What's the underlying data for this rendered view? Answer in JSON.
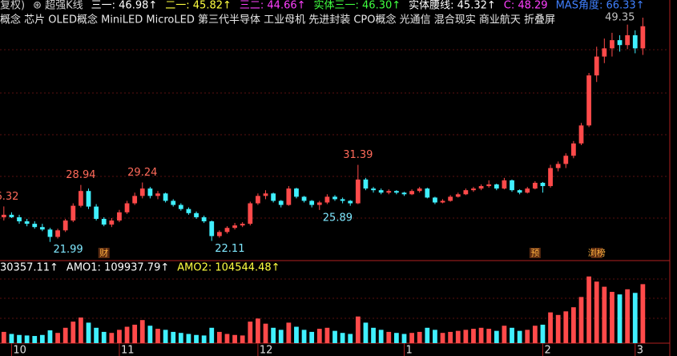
{
  "chart_data": {
    "type": "candlestick",
    "indicators": [
      {
        "label": "复权)",
        "color": "#d0d0d0"
      },
      {
        "label": "⊛ 超强K线",
        "color": "#d0d0d0"
      },
      {
        "label": "三一: 46.98↑",
        "color": "#ffffff"
      },
      {
        "label": "二一: 45.82↑",
        "color": "#ffff40"
      },
      {
        "label": "三二: 44.66↑",
        "color": "#ff40ff"
      },
      {
        "label": "实体三一: 46.30↑",
        "color": "#40ff40"
      },
      {
        "label": "实体腰线: 45.32↑",
        "color": "#ffffff"
      },
      {
        "label": "C: 48.29",
        "color": "#ff40ff"
      },
      {
        "label": "MAS角度: 66.33↑",
        "color": "#4080ff"
      }
    ],
    "concepts": "概念 芯片 OLED概念 MiniLED MicroLED 第三代半导体 工业母机 先进封装 CPO概念 光通信 混合现实 商业航天 折叠屏",
    "volume_indicators": [
      {
        "label": "30357.11↑",
        "color": "#ffffff"
      },
      {
        "label": "AMO1: 109937.79↑",
        "color": "#ffffff"
      },
      {
        "label": "AMO2: 104544.48↑",
        "color": "#ffff40"
      }
    ],
    "up_color": "#ff4a4a",
    "down_color": "#40f0ff",
    "ylim": [
      20.2,
      51.5
    ],
    "volume_ylim": [
      0,
      150000
    ],
    "xlim": [
      -0.5,
      86.5
    ],
    "xticks": [
      {
        "value": 1,
        "label": "10"
      },
      {
        "value": 15,
        "label": "11"
      },
      {
        "value": 33,
        "label": "12"
      },
      {
        "value": 52,
        "label": "1"
      },
      {
        "value": 70,
        "label": "2"
      },
      {
        "value": 82,
        "label": "3"
      }
    ],
    "peak_labels": [
      0,
      10,
      18,
      46,
      83
    ],
    "trough_labels": [
      6,
      27,
      41
    ],
    "events": [
      {
        "index": 13,
        "label": "财"
      },
      {
        "index": 69,
        "label": "预"
      },
      {
        "index": 77,
        "label": "浏榜"
      }
    ],
    "candles": [
      [
        25.0,
        26.32,
        24.6,
        25.3
      ],
      [
        25.3,
        25.6,
        24.9,
        25.0
      ],
      [
        25.0,
        25.3,
        24.2,
        24.5
      ],
      [
        24.5,
        24.8,
        23.9,
        24.2
      ],
      [
        24.2,
        24.5,
        23.6,
        23.8
      ],
      [
        23.8,
        24.2,
        23.3,
        23.5
      ],
      [
        23.5,
        23.7,
        21.99,
        22.6
      ],
      [
        22.6,
        23.6,
        22.4,
        23.4
      ],
      [
        23.4,
        24.8,
        23.2,
        24.6
      ],
      [
        24.6,
        26.7,
        24.4,
        26.4
      ],
      [
        26.4,
        28.94,
        26.2,
        28.2
      ],
      [
        28.2,
        28.5,
        26.0,
        26.3
      ],
      [
        26.3,
        26.6,
        24.6,
        24.8
      ],
      [
        24.8,
        25.0,
        23.9,
        24.1
      ],
      [
        24.1,
        24.9,
        23.8,
        24.6
      ],
      [
        24.6,
        25.9,
        24.4,
        25.6
      ],
      [
        25.6,
        27.0,
        25.4,
        26.7
      ],
      [
        26.7,
        28.0,
        26.5,
        27.6
      ],
      [
        27.6,
        29.24,
        27.3,
        28.5
      ],
      [
        28.5,
        28.7,
        27.3,
        27.6
      ],
      [
        27.6,
        28.2,
        27.2,
        27.9
      ],
      [
        27.9,
        28.0,
        26.8,
        27.0
      ],
      [
        27.0,
        27.2,
        26.3,
        26.5
      ],
      [
        26.5,
        26.7,
        25.8,
        26.0
      ],
      [
        26.0,
        26.2,
        25.3,
        25.5
      ],
      [
        25.5,
        25.7,
        24.8,
        25.0
      ],
      [
        25.0,
        25.2,
        24.3,
        24.5
      ],
      [
        24.5,
        24.6,
        22.11,
        22.7
      ],
      [
        22.7,
        23.4,
        22.5,
        23.2
      ],
      [
        23.2,
        23.9,
        23.0,
        23.7
      ],
      [
        23.7,
        24.3,
        23.5,
        24.0
      ],
      [
        24.0,
        24.4,
        23.8,
        24.2
      ],
      [
        24.2,
        26.9,
        24.0,
        26.7
      ],
      [
        26.7,
        27.9,
        26.5,
        27.6
      ],
      [
        27.6,
        28.3,
        27.2,
        27.9
      ],
      [
        27.9,
        28.0,
        26.8,
        27.0
      ],
      [
        27.0,
        27.1,
        26.2,
        26.5
      ],
      [
        26.5,
        28.8,
        26.4,
        28.5
      ],
      [
        28.5,
        28.6,
        27.3,
        27.5
      ],
      [
        27.5,
        27.6,
        26.8,
        27.0
      ],
      [
        27.0,
        27.1,
        26.2,
        26.5
      ],
      [
        26.5,
        27.0,
        25.89,
        26.8
      ],
      [
        26.8,
        27.8,
        26.6,
        27.5
      ],
      [
        27.5,
        27.7,
        27.0,
        27.2
      ],
      [
        27.2,
        27.4,
        26.7,
        27.0
      ],
      [
        27.0,
        27.1,
        26.4,
        26.7
      ],
      [
        26.7,
        31.39,
        26.6,
        29.6
      ],
      [
        29.6,
        29.8,
        28.3,
        28.5
      ],
      [
        28.5,
        28.7,
        28.0,
        28.3
      ],
      [
        28.3,
        28.5,
        27.8,
        28.0
      ],
      [
        28.0,
        28.4,
        27.8,
        28.2
      ],
      [
        28.2,
        28.3,
        27.8,
        28.0
      ],
      [
        28.0,
        28.1,
        27.6,
        27.8
      ],
      [
        27.8,
        28.4,
        27.7,
        28.2
      ],
      [
        28.2,
        28.7,
        28.0,
        28.5
      ],
      [
        28.5,
        28.6,
        27.3,
        27.4
      ],
      [
        27.4,
        27.5,
        26.6,
        26.8
      ],
      [
        26.8,
        27.2,
        26.7,
        27.0
      ],
      [
        27.0,
        27.7,
        26.9,
        27.5
      ],
      [
        27.5,
        28.0,
        27.4,
        27.8
      ],
      [
        27.8,
        28.5,
        27.7,
        28.3
      ],
      [
        28.3,
        28.7,
        28.1,
        28.5
      ],
      [
        28.5,
        29.0,
        28.3,
        28.8
      ],
      [
        28.8,
        29.5,
        28.6,
        29.0
      ],
      [
        29.0,
        29.1,
        28.3,
        28.5
      ],
      [
        28.5,
        29.8,
        28.4,
        29.5
      ],
      [
        29.5,
        29.6,
        28.1,
        28.3
      ],
      [
        28.3,
        28.4,
        27.8,
        28.0
      ],
      [
        28.0,
        28.7,
        27.9,
        28.5
      ],
      [
        28.5,
        29.4,
        28.4,
        29.2
      ],
      [
        29.2,
        29.3,
        28.0,
        28.8
      ],
      [
        28.8,
        31.4,
        28.6,
        31.0
      ],
      [
        31.0,
        31.8,
        30.6,
        31.5
      ],
      [
        31.5,
        32.8,
        31.0,
        32.5
      ],
      [
        32.5,
        34.3,
        32.2,
        34.0
      ],
      [
        34.0,
        36.5,
        33.8,
        36.2
      ],
      [
        36.2,
        42.6,
        36.0,
        42.3
      ],
      [
        42.3,
        45.8,
        41.5,
        44.6
      ],
      [
        44.6,
        46.8,
        43.8,
        45.6
      ],
      [
        45.6,
        47.5,
        44.6,
        46.6
      ],
      [
        46.6,
        47.2,
        45.2,
        46.0
      ],
      [
        46.0,
        48.5,
        45.5,
        47.2
      ],
      [
        47.2,
        47.8,
        45.0,
        45.6
      ],
      [
        45.6,
        49.35,
        44.8,
        48.3
      ]
    ],
    "volumes": [
      22000,
      18000,
      16000,
      15000,
      14000,
      16000,
      25000,
      20000,
      30000,
      42000,
      50000,
      40000,
      30000,
      22000,
      20000,
      26000,
      32000,
      36000,
      45000,
      34000,
      28000,
      26000,
      22000,
      20000,
      18000,
      16000,
      15000,
      30000,
      22000,
      18000,
      16000,
      15000,
      42000,
      48000,
      38000,
      30000,
      26000,
      40000,
      32000,
      26000,
      22000,
      28000,
      30000,
      24000,
      20000,
      18000,
      52000,
      40000,
      30000,
      26000,
      22000,
      20000,
      18000,
      20000,
      22000,
      30000,
      26000,
      20000,
      22000,
      24000,
      26000,
      28000,
      30000,
      28000,
      24000,
      34000,
      30000,
      24000,
      26000,
      34000,
      36000,
      60000,
      55000,
      62000,
      70000,
      90000,
      130000,
      120000,
      110000,
      100000,
      95000,
      105000,
      98000,
      115000
    ]
  }
}
